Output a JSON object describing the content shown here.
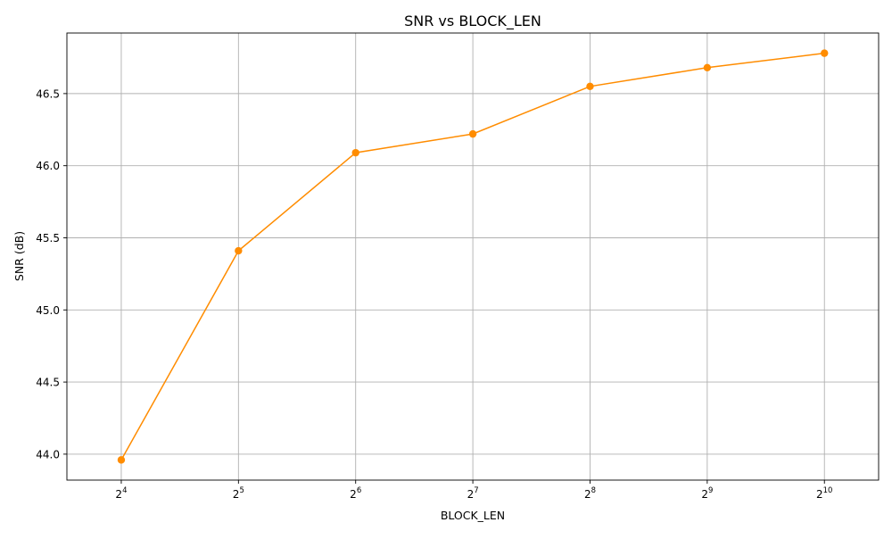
{
  "chart_data": {
    "type": "line",
    "title": "SNR vs BLOCK_LEN",
    "xlabel": "BLOCK_LEN",
    "ylabel": "SNR (dB)",
    "x_scale": "log2",
    "x": [
      16,
      32,
      64,
      128,
      256,
      512,
      1024
    ],
    "x_tick_labels": [
      {
        "base": "2",
        "exp": "4"
      },
      {
        "base": "2",
        "exp": "5"
      },
      {
        "base": "2",
        "exp": "6"
      },
      {
        "base": "2",
        "exp": "7"
      },
      {
        "base": "2",
        "exp": "8"
      },
      {
        "base": "2",
        "exp": "9"
      },
      {
        "base": "2",
        "exp": "10"
      }
    ],
    "series": [
      {
        "values": [
          43.96,
          45.41,
          46.09,
          46.22,
          46.55,
          46.68,
          46.78
        ],
        "color": "#ff8c00",
        "marker": "circle"
      }
    ],
    "xlim": [
      11.6,
      1411.0
    ],
    "ylim": [
      43.82,
      46.92
    ],
    "y_ticks": [
      44.0,
      44.5,
      45.0,
      45.5,
      46.0,
      46.5
    ],
    "y_tick_labels": [
      "44.0",
      "44.5",
      "45.0",
      "45.5",
      "46.0",
      "46.5"
    ],
    "grid": true,
    "legend": "none"
  }
}
